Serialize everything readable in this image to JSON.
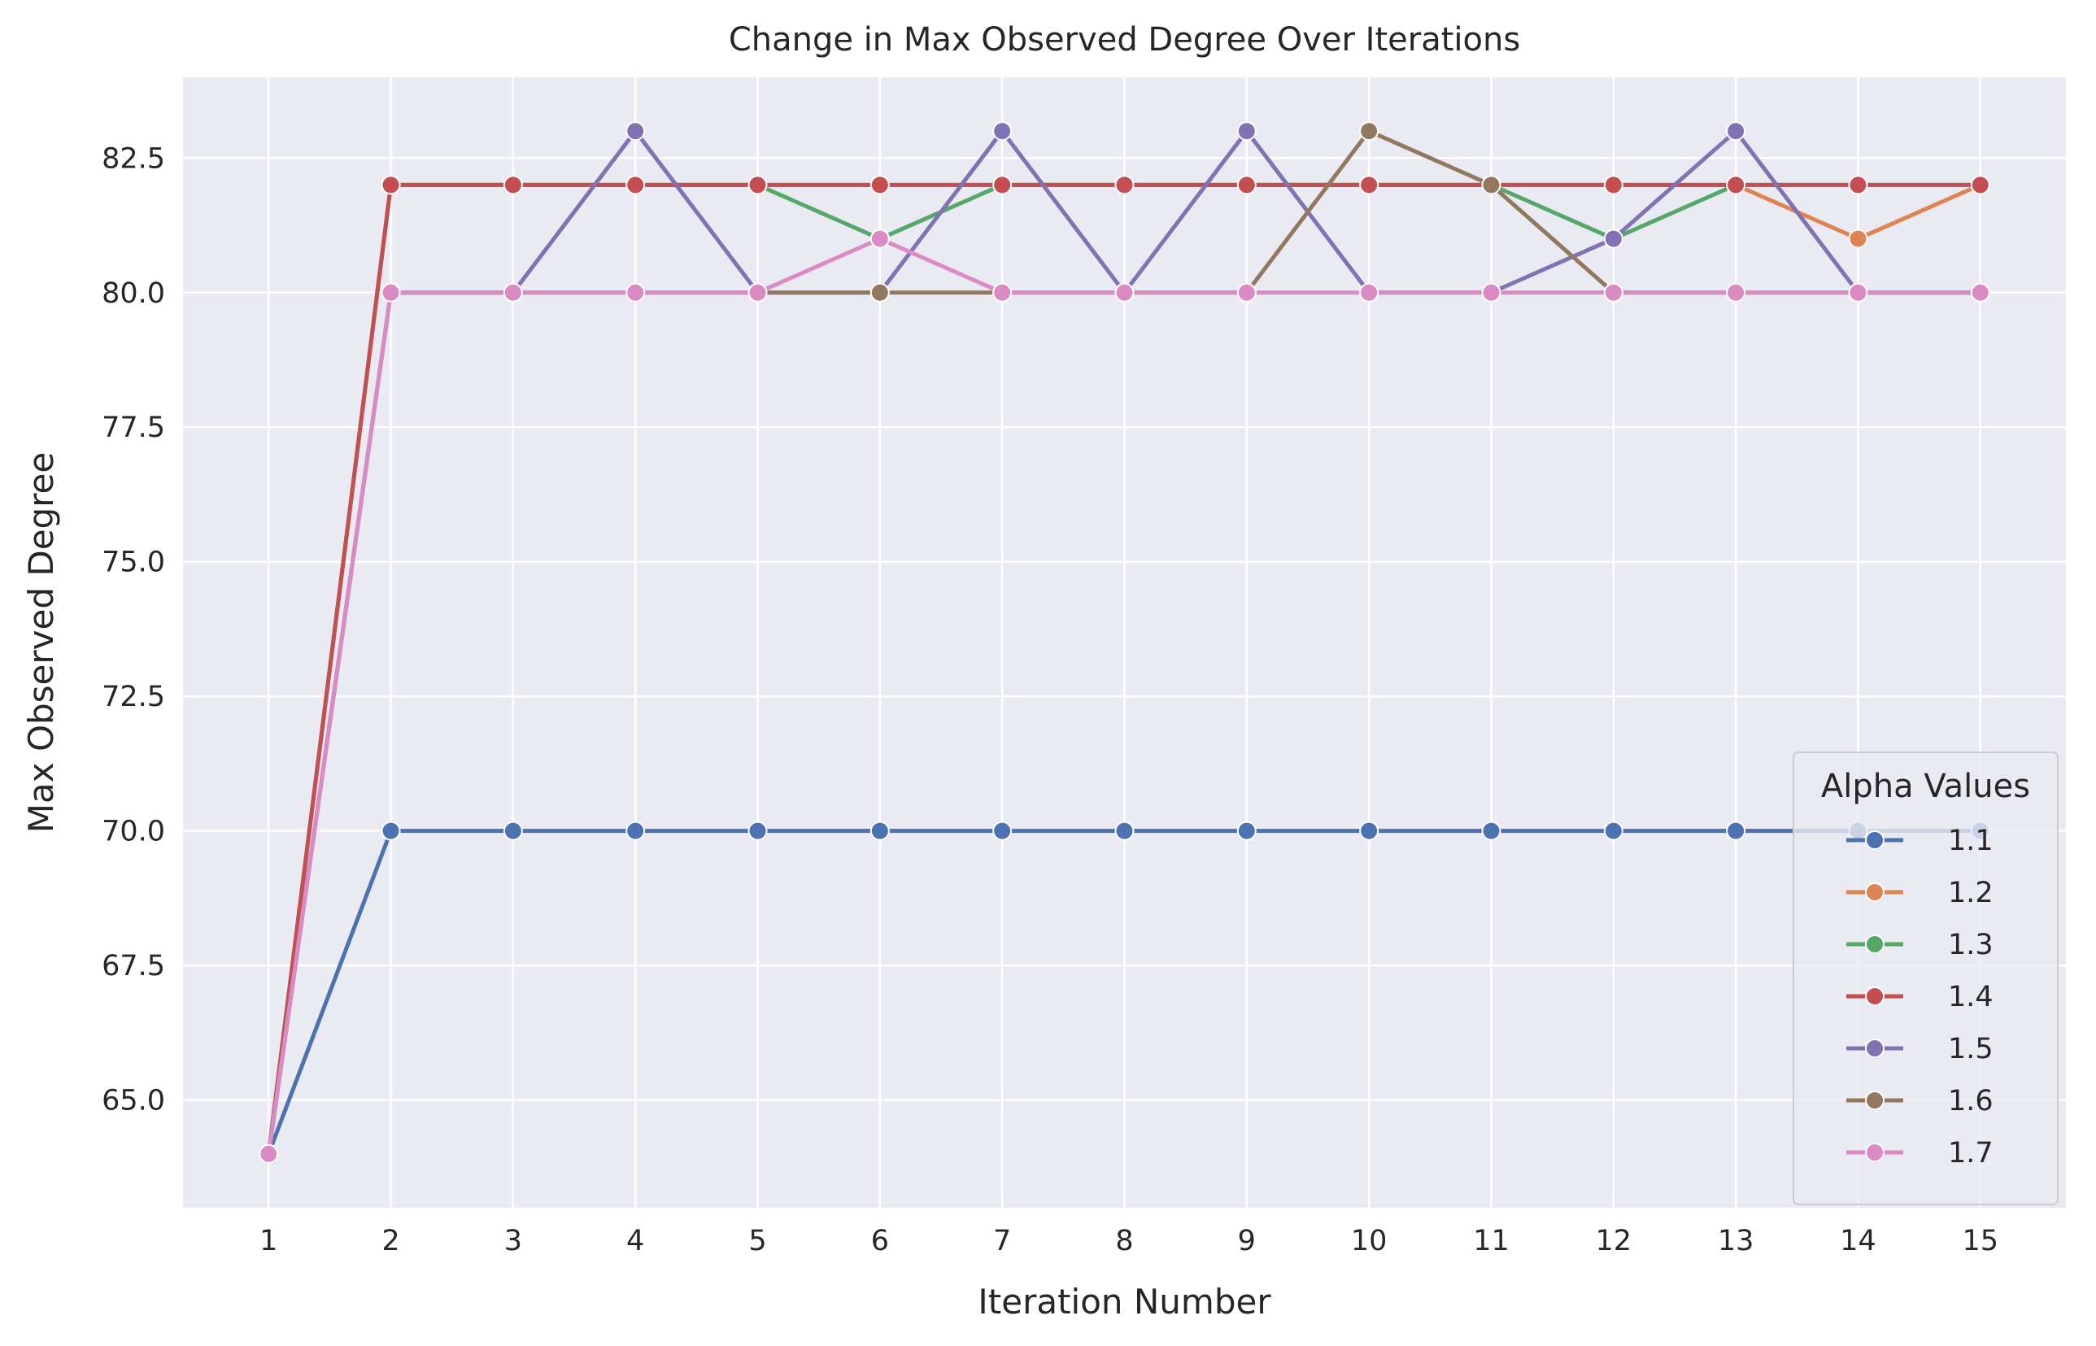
{
  "chart_data": {
    "type": "line",
    "title": "Change in Max Observed Degree Over Iterations",
    "xlabel": "Iteration Number",
    "ylabel": "Max Observed Degree",
    "x": [
      1,
      2,
      3,
      4,
      5,
      6,
      7,
      8,
      9,
      10,
      11,
      12,
      13,
      14,
      15
    ],
    "x_tick_labels": [
      "1",
      "2",
      "3",
      "4",
      "5",
      "6",
      "7",
      "8",
      "9",
      "10",
      "11",
      "12",
      "13",
      "14",
      "15"
    ],
    "ylim": [
      63,
      84
    ],
    "y_ticks": [
      65.0,
      67.5,
      70.0,
      72.5,
      75.0,
      77.5,
      80.0,
      82.5
    ],
    "y_tick_labels": [
      "65.0",
      "67.5",
      "70.0",
      "72.5",
      "75.0",
      "77.5",
      "80.0",
      "82.5"
    ],
    "grid": true,
    "legend": {
      "title": "Alpha Values",
      "placement": "lower-right"
    },
    "series": [
      {
        "name": "1.1",
        "color": "#4c72b0",
        "values": [
          64,
          70,
          70,
          70,
          70,
          70,
          70,
          70,
          70,
          70,
          70,
          70,
          70,
          70,
          70
        ]
      },
      {
        "name": "1.2",
        "color": "#dd8452",
        "values": [
          64,
          82,
          82,
          82,
          82,
          82,
          82,
          82,
          82,
          82,
          82,
          82,
          82,
          81,
          82
        ]
      },
      {
        "name": "1.3",
        "color": "#55a868",
        "values": [
          64,
          82,
          82,
          82,
          82,
          81,
          82,
          82,
          82,
          82,
          82,
          81,
          82,
          82,
          82
        ]
      },
      {
        "name": "1.4",
        "color": "#c44e52",
        "values": [
          64,
          82,
          82,
          82,
          82,
          82,
          82,
          82,
          82,
          82,
          82,
          82,
          82,
          82,
          82
        ]
      },
      {
        "name": "1.5",
        "color": "#8172b3",
        "values": [
          64,
          80,
          80,
          83,
          80,
          80,
          83,
          80,
          83,
          80,
          80,
          81,
          83,
          80,
          80
        ]
      },
      {
        "name": "1.6",
        "color": "#937860",
        "values": [
          64,
          80,
          80,
          80,
          80,
          80,
          80,
          80,
          80,
          83,
          82,
          80,
          80,
          80,
          80
        ]
      },
      {
        "name": "1.7",
        "color": "#da8bc3",
        "values": [
          64,
          80,
          80,
          80,
          80,
          81,
          80,
          80,
          80,
          80,
          80,
          80,
          80,
          80,
          80
        ]
      }
    ]
  }
}
